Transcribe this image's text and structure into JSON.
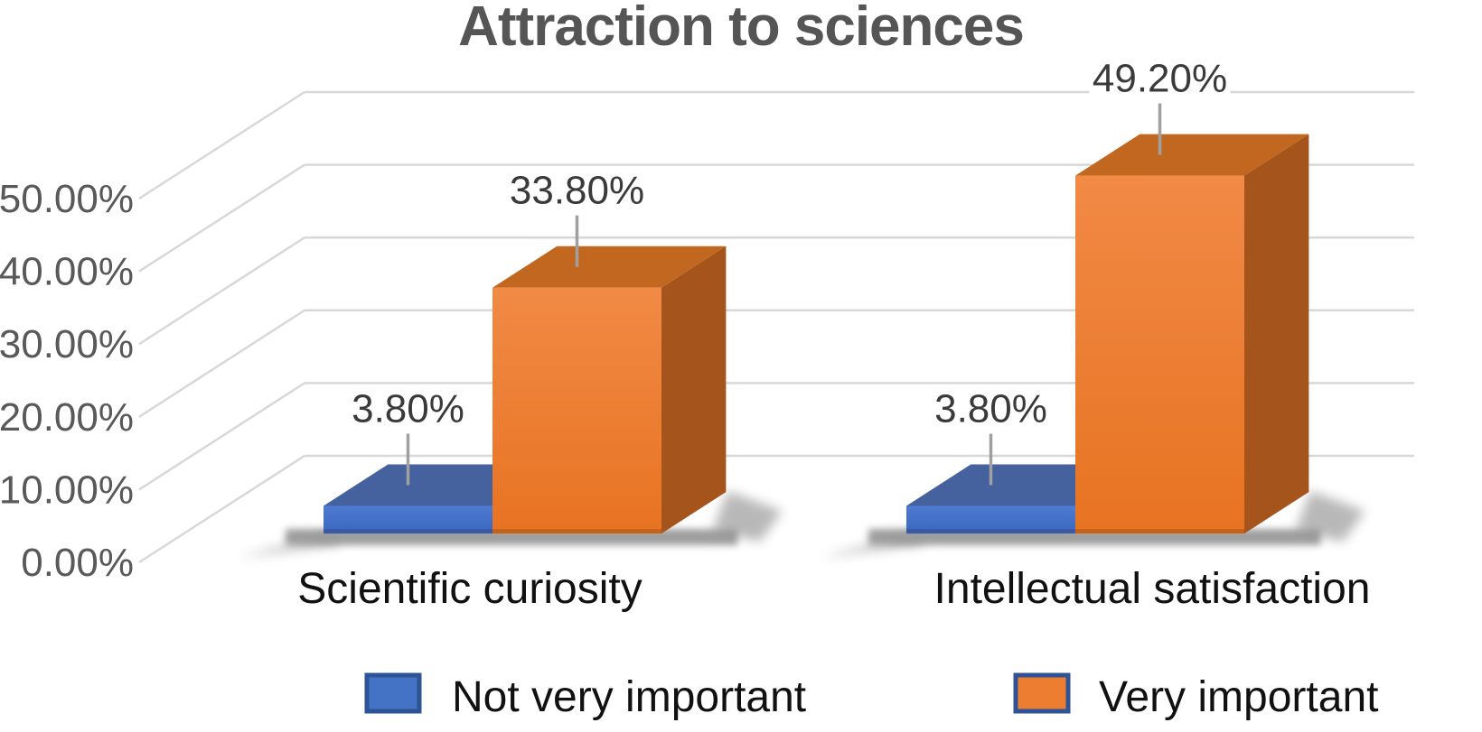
{
  "title": "Attraction to sciences",
  "chart_data": {
    "type": "bar",
    "projection": "3d",
    "title": "Attraction to sciences",
    "categories": [
      "Scientific curiosity",
      "Intellectual satisfaction"
    ],
    "series": [
      {
        "name": "Not very important",
        "color": "#4472C4",
        "values": [
          3.8,
          3.8
        ],
        "value_labels": [
          "3.80%",
          "3.80%"
        ]
      },
      {
        "name": "Very important",
        "color": "#ED7D31",
        "values": [
          33.8,
          49.2
        ],
        "value_labels": [
          "33.80%",
          "49.20%"
        ]
      }
    ],
    "y_axis": {
      "min": 0,
      "max": 50,
      "tick_step": 10,
      "tick_labels": [
        "0.00%",
        "10.00%",
        "20.00%",
        "30.00%",
        "40.00%",
        "50.00%"
      ]
    },
    "grid": true,
    "legend_position": "bottom",
    "data_labels_shown": true
  },
  "style": {
    "title_color": "#555555",
    "axis_label_color": "#595959",
    "data_label_color": "#3a3a3a",
    "text_color": "#111111",
    "gridline_color": "#d8d8d8",
    "leader_line_color": "#a0a0a0",
    "legend_swatch_border": "#2f5496",
    "shadow_color": "#5f5f5f",
    "series_styles": [
      {
        "front_top": "#4e7bd3",
        "front_bottom": "#3c66bd",
        "top": "#45619e",
        "side": "#33518d",
        "edge": "#3a5aa0"
      },
      {
        "front_top": "#f18a45",
        "front_bottom": "#e77322",
        "top": "#c2671f",
        "side": "#a5551b",
        "edge": "#c06018"
      }
    ]
  }
}
